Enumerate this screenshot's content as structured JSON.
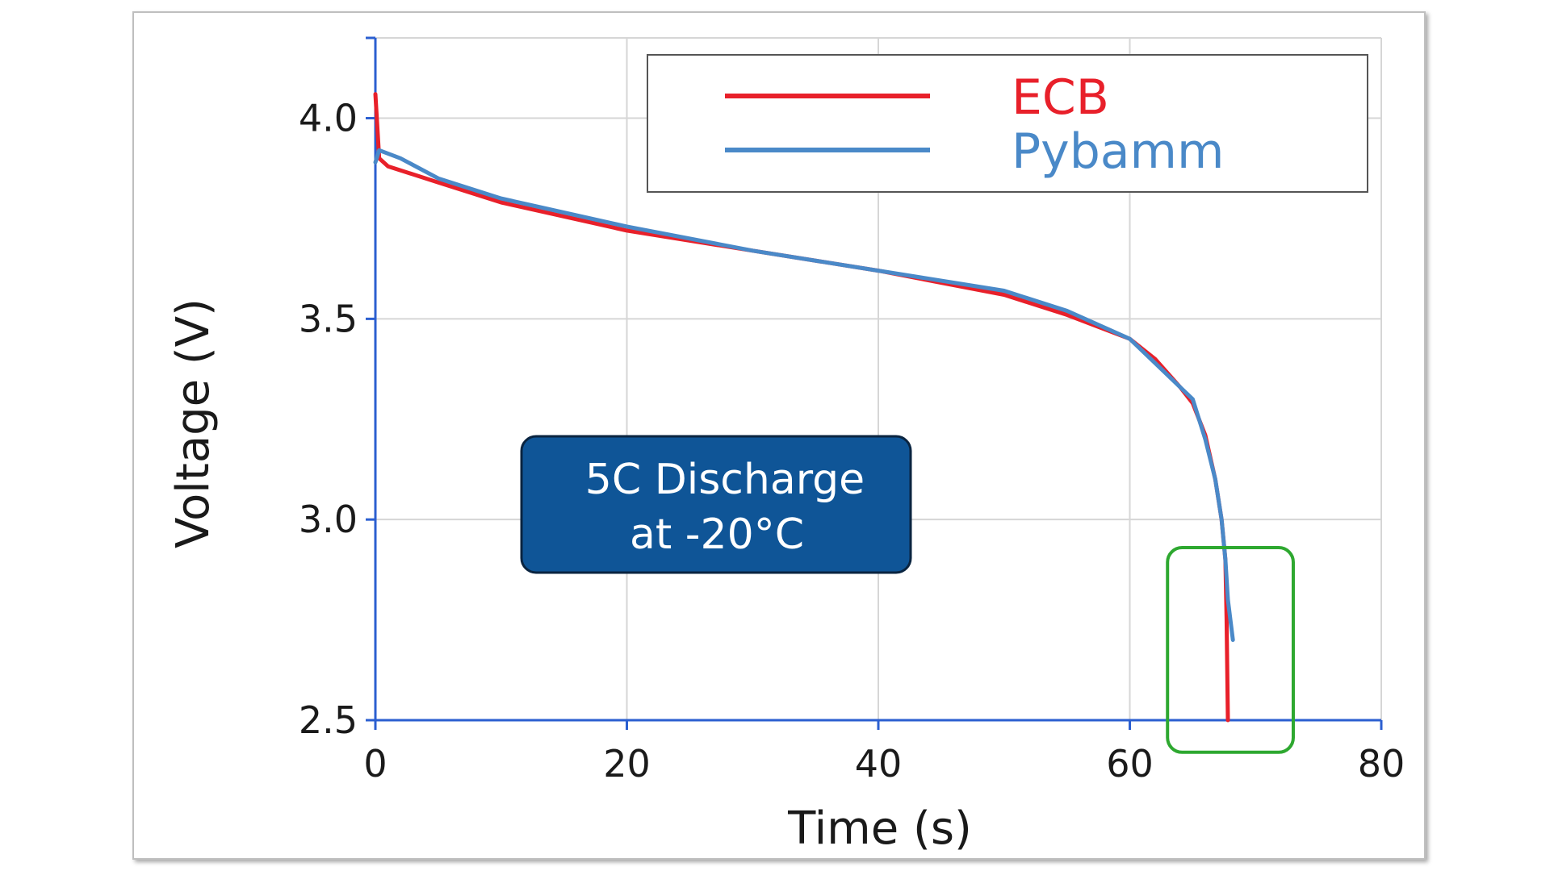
{
  "chart_data": {
    "type": "line",
    "xlabel": "Time (s)",
    "ylabel": "Voltage (V)",
    "xlim": [
      0,
      80
    ],
    "ylim": [
      2.5,
      4.2
    ],
    "x_ticks": [
      "0",
      "20",
      "40",
      "60",
      "80"
    ],
    "y_ticks": [
      "2.5",
      "3.0",
      "3.5",
      "4.0"
    ],
    "x_tick_values": [
      0,
      20,
      40,
      60,
      80
    ],
    "y_tick_values": [
      2.5,
      3.0,
      3.5,
      4.0
    ],
    "grid": true,
    "legend_position": "top-right",
    "series": [
      {
        "name": "ECB",
        "color": "#e8202a",
        "points": [
          [
            0,
            4.06
          ],
          [
            0.3,
            3.9
          ],
          [
            1,
            3.88
          ],
          [
            5,
            3.84
          ],
          [
            10,
            3.79
          ],
          [
            20,
            3.72
          ],
          [
            30,
            3.67
          ],
          [
            40,
            3.62
          ],
          [
            50,
            3.56
          ],
          [
            55,
            3.51
          ],
          [
            60,
            3.45
          ],
          [
            62,
            3.4
          ],
          [
            64,
            3.33
          ],
          [
            65,
            3.29
          ],
          [
            66,
            3.21
          ],
          [
            66.8,
            3.1
          ],
          [
            67.3,
            3.0
          ],
          [
            67.6,
            2.9
          ],
          [
            67.7,
            2.75
          ],
          [
            67.8,
            2.5
          ]
        ]
      },
      {
        "name": "Pybamm",
        "color": "#4a89c8",
        "points": [
          [
            0,
            3.89
          ],
          [
            0.3,
            3.92
          ],
          [
            2,
            3.9
          ],
          [
            5,
            3.85
          ],
          [
            10,
            3.8
          ],
          [
            20,
            3.73
          ],
          [
            30,
            3.67
          ],
          [
            40,
            3.62
          ],
          [
            50,
            3.57
          ],
          [
            55,
            3.52
          ],
          [
            60,
            3.45
          ],
          [
            62,
            3.39
          ],
          [
            64,
            3.33
          ],
          [
            65,
            3.3
          ],
          [
            66,
            3.2
          ],
          [
            66.8,
            3.1
          ],
          [
            67.3,
            3.0
          ],
          [
            67.6,
            2.9
          ],
          [
            67.8,
            2.8
          ],
          [
            68.2,
            2.7
          ]
        ]
      }
    ],
    "annotation": {
      "line1": "5C Discharge",
      "line2": "at -20°C",
      "fill": "#0f5597",
      "text_color": "#ffffff"
    },
    "highlight": {
      "color": "#2ea830",
      "x_range": [
        63,
        73
      ],
      "y_range": [
        2.42,
        2.93
      ]
    }
  }
}
